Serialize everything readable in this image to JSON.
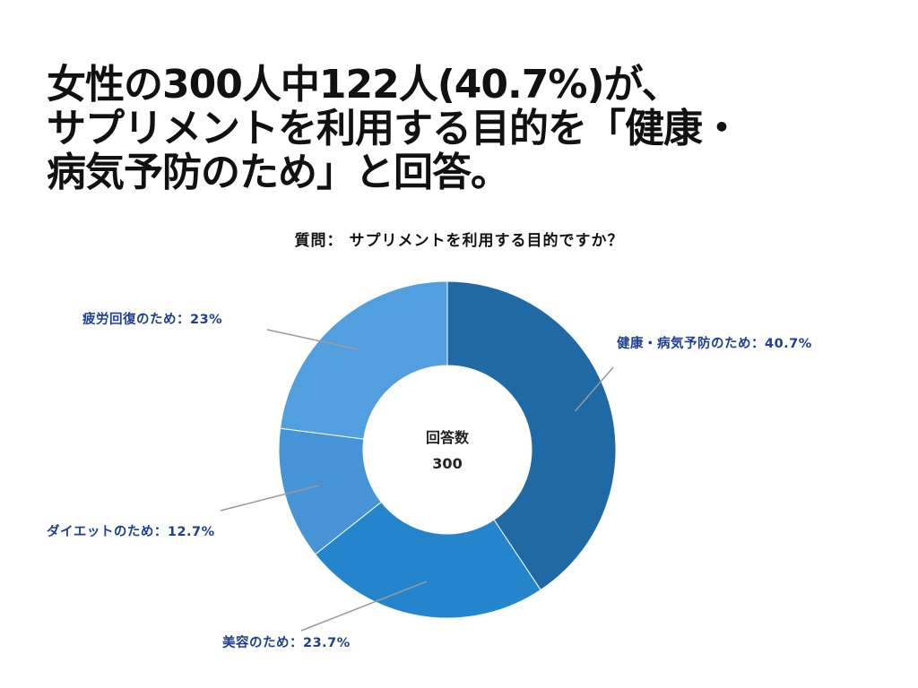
{
  "headline": {
    "line1": "女性の300人中122人(40.7%)が、",
    "line2": "サプリメントを利用する目的を「健康・",
    "line3": "病気予防のため」と回答。"
  },
  "chart_data": {
    "type": "pie",
    "title": "質問： サプリメントを利用する目的ですか？",
    "center_label": "回答数",
    "center_value": "300",
    "slices": [
      {
        "name": "健康・病気予防のため",
        "value": 40.7,
        "label": "健康・病気予防のため：40.7%",
        "color": "#1f6aa5"
      },
      {
        "name": "美容のため",
        "value": 23.7,
        "label": "美容のため：23.7%",
        "color": "#2485cc"
      },
      {
        "name": "ダイエットのため",
        "value": 12.7,
        "label": "ダイエットのため：12.7%",
        "color": "#4694d6"
      },
      {
        "name": "疲労回復のため",
        "value": 23,
        "label": "疲労回復のため：23%",
        "color": "#519fdf"
      }
    ],
    "label_color": "#1e3f8f",
    "leader_color": "#9a9a9a"
  }
}
